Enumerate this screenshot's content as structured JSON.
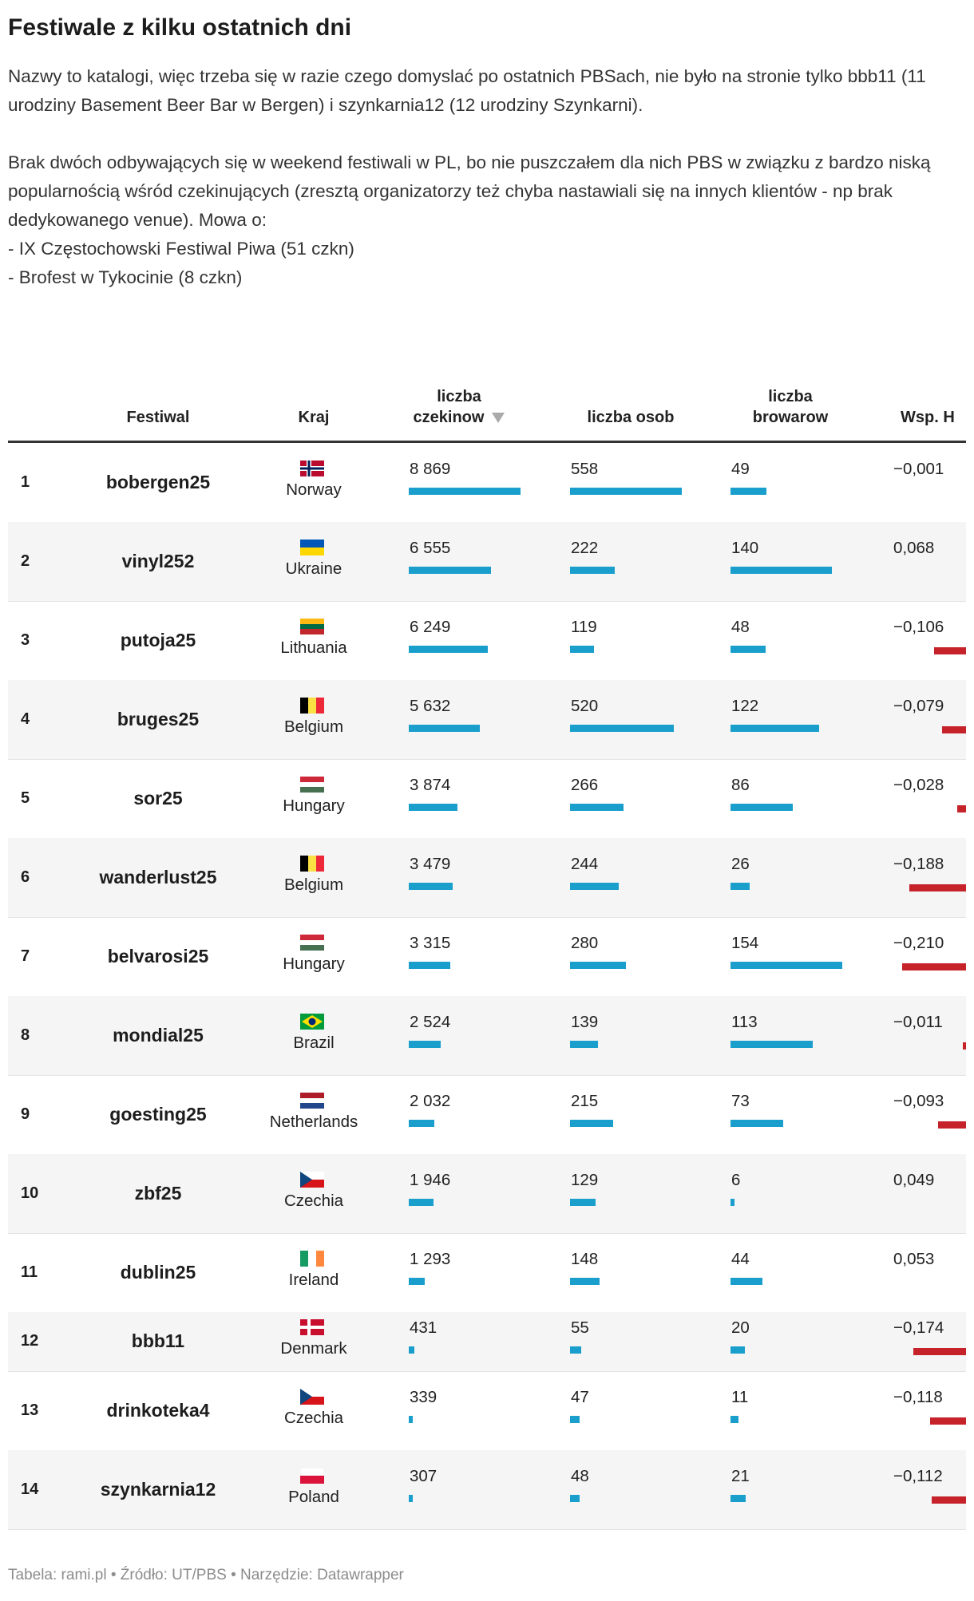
{
  "title": "Festiwale z kilku ostatnich dni",
  "intro": {
    "p1": "Nazwy to katalogi, więc trzeba się w razie czego domyslać po ostatnich PBSach, nie było na stronie tylko bbb11 (11 urodziny Basement Beer Bar w Bergen) i szynkarnia12 (12 urodziny Szynkarni).",
    "p2": "Brak dwóch odbywających się w weekend festiwali w PL, bo nie puszczałem dla nich PBS w związku z bardzo niską popularnością wśród czekinujących (zresztą organizatorzy też chyba nastawiali się na innych klientów - np brak dedykowanego venue). Mowa o:",
    "p3": "- IX Częstochowski Festiwal Piwa (51 czkn)",
    "p4": "- Brofest w Tykocinie (8 czkn)"
  },
  "columns": {
    "festiwal": "Festiwal",
    "kraj": "Kraj",
    "czekinow_1": "liczba",
    "czekinow_2": "czekinow",
    "osob": "liczba osob",
    "browarow_1": "liczba",
    "browarow_2": "browarow",
    "wsp": "Wsp. H"
  },
  "footer": "Tabela: rami.pl • Źródło: UT/PBS • Narzędzie: Datawrapper",
  "colors": {
    "bar_positive": "#1a9fcd",
    "bar_negative": "#c6222a"
  },
  "chart_data": {
    "type": "table",
    "sort": "liczba czekinow descending",
    "rows": [
      {
        "rank": "1",
        "festiwal": "bobergen25",
        "flag": "norway-flag",
        "kraj": "Norway",
        "czekinow": 8869,
        "czekinow_label": "8 869",
        "osob": 558,
        "osob_label": "558",
        "browarow": 49,
        "browarow_label": "49",
        "wsp": -0.001,
        "wsp_label": "−0,001"
      },
      {
        "rank": "2",
        "festiwal": "vinyl252",
        "flag": "ukraine-flag",
        "kraj": "Ukraine",
        "czekinow": 6555,
        "czekinow_label": "6 555",
        "osob": 222,
        "osob_label": "222",
        "browarow": 140,
        "browarow_label": "140",
        "wsp": 0.068,
        "wsp_label": "0,068"
      },
      {
        "rank": "3",
        "festiwal": "putoja25",
        "flag": "lithuania-flag",
        "kraj": "Lithuania",
        "czekinow": 6249,
        "czekinow_label": "6 249",
        "osob": 119,
        "osob_label": "119",
        "browarow": 48,
        "browarow_label": "48",
        "wsp": -0.106,
        "wsp_label": "−0,106"
      },
      {
        "rank": "4",
        "festiwal": "bruges25",
        "flag": "belgium-flag",
        "kraj": "Belgium",
        "czekinow": 5632,
        "czekinow_label": "5 632",
        "osob": 520,
        "osob_label": "520",
        "browarow": 122,
        "browarow_label": "122",
        "wsp": -0.079,
        "wsp_label": "−0,079"
      },
      {
        "rank": "5",
        "festiwal": "sor25",
        "flag": "hungary-flag",
        "kraj": "Hungary",
        "czekinow": 3874,
        "czekinow_label": "3 874",
        "osob": 266,
        "osob_label": "266",
        "browarow": 86,
        "browarow_label": "86",
        "wsp": -0.028,
        "wsp_label": "−0,028"
      },
      {
        "rank": "6",
        "festiwal": "wanderlust25",
        "flag": "belgium-flag",
        "kraj": "Belgium",
        "czekinow": 3479,
        "czekinow_label": "3 479",
        "osob": 244,
        "osob_label": "244",
        "browarow": 26,
        "browarow_label": "26",
        "wsp": -0.188,
        "wsp_label": "−0,188"
      },
      {
        "rank": "7",
        "festiwal": "belvarosi25",
        "flag": "hungary-flag",
        "kraj": "Hungary",
        "czekinow": 3315,
        "czekinow_label": "3 315",
        "osob": 280,
        "osob_label": "280",
        "browarow": 154,
        "browarow_label": "154",
        "wsp": -0.21,
        "wsp_label": "−0,210"
      },
      {
        "rank": "8",
        "festiwal": "mondial25",
        "flag": "brazil-flag",
        "kraj": "Brazil",
        "czekinow": 2524,
        "czekinow_label": "2 524",
        "osob": 139,
        "osob_label": "139",
        "browarow": 113,
        "browarow_label": "113",
        "wsp": -0.011,
        "wsp_label": "−0,011"
      },
      {
        "rank": "9",
        "festiwal": "goesting25",
        "flag": "netherlands-flag",
        "kraj": "Netherlands",
        "czekinow": 2032,
        "czekinow_label": "2 032",
        "osob": 215,
        "osob_label": "215",
        "browarow": 73,
        "browarow_label": "73",
        "wsp": -0.093,
        "wsp_label": "−0,093"
      },
      {
        "rank": "10",
        "festiwal": "zbf25",
        "flag": "czechia-flag",
        "kraj": "Czechia",
        "czekinow": 1946,
        "czekinow_label": "1 946",
        "osob": 129,
        "osob_label": "129",
        "browarow": 6,
        "browarow_label": "6",
        "wsp": 0.049,
        "wsp_label": "0,049"
      },
      {
        "rank": "11",
        "festiwal": "dublin25",
        "flag": "ireland-flag",
        "kraj": "Ireland",
        "czekinow": 1293,
        "czekinow_label": "1 293",
        "osob": 148,
        "osob_label": "148",
        "browarow": 44,
        "browarow_label": "44",
        "wsp": 0.053,
        "wsp_label": "0,053"
      },
      {
        "rank": "12",
        "festiwal": "bbb11",
        "flag": "denmark-flag",
        "kraj": "Denmark",
        "czekinow": 431,
        "czekinow_label": "431",
        "osob": 55,
        "osob_label": "55",
        "browarow": 20,
        "browarow_label": "20",
        "wsp": -0.174,
        "wsp_label": "−0,174"
      },
      {
        "rank": "13",
        "festiwal": "drinkoteka4",
        "flag": "czechia-flag",
        "kraj": "Czechia",
        "czekinow": 339,
        "czekinow_label": "339",
        "osob": 47,
        "osob_label": "47",
        "browarow": 11,
        "browarow_label": "11",
        "wsp": -0.118,
        "wsp_label": "−0,118"
      },
      {
        "rank": "14",
        "festiwal": "szynkarnia12",
        "flag": "poland-flag",
        "kraj": "Poland",
        "czekinow": 307,
        "czekinow_label": "307",
        "osob": 48,
        "osob_label": "48",
        "browarow": 21,
        "browarow_label": "21",
        "wsp": -0.112,
        "wsp_label": "−0,112"
      }
    ]
  }
}
